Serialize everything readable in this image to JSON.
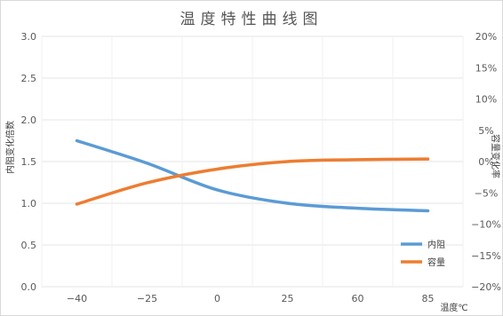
{
  "chart_data": {
    "type": "line",
    "title": "温度特性曲线图",
    "xlabel": "温度℃",
    "ylabel_left": "内阻变化倍数",
    "ylabel_right": "容量变化率",
    "categories": [
      "−40",
      "−25",
      "0",
      "25",
      "60",
      "85"
    ],
    "y_left_ticks": [
      "0.0",
      "0.5",
      "1.0",
      "1.5",
      "2.0",
      "2.5",
      "3.0"
    ],
    "y_right_ticks": [
      "−20%",
      "−15%",
      "−10%",
      "−5%",
      "0%",
      "5%",
      "10%",
      "15%",
      "20%"
    ],
    "ylim_left": [
      0,
      3
    ],
    "ylim_right": [
      -20,
      20
    ],
    "series": [
      {
        "name": "内阻",
        "axis": "left",
        "color": "#5b9bd5",
        "values": [
          1.75,
          1.48,
          1.16,
          1.0,
          0.94,
          0.91
        ]
      },
      {
        "name": "容量",
        "axis": "right",
        "color": "#ed7d31",
        "values": [
          -6.8,
          -3.4,
          -1.2,
          0.0,
          0.3,
          0.4
        ]
      }
    ],
    "legend_position": "bottom-right",
    "grid": true
  }
}
